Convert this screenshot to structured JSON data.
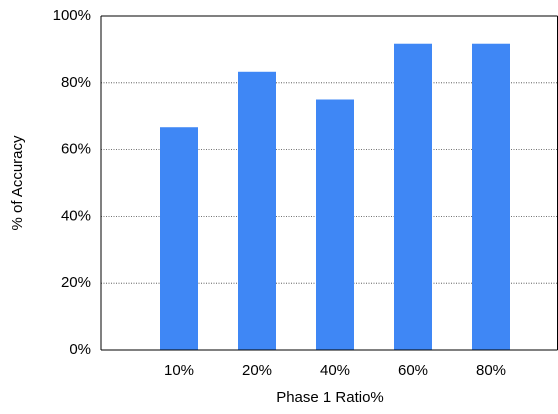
{
  "chart_data": {
    "type": "bar",
    "x_label": "Phase 1 Ratio%",
    "y_label": "% of Accuracy",
    "categories": [
      "10%",
      "20%",
      "40%",
      "60%",
      "80%"
    ],
    "values": [
      66.7,
      83.3,
      75,
      91.7,
      91.7
    ],
    "color": "#3f87f5",
    "ylim": [
      0,
      100
    ],
    "yticks": [
      {
        "value": 0,
        "label": "0%"
      },
      {
        "value": 20,
        "label": "20%"
      },
      {
        "value": 40,
        "label": "40%"
      },
      {
        "value": 60,
        "label": "60%"
      },
      {
        "value": 80,
        "label": "80%"
      },
      {
        "value": 100,
        "label": "100%"
      }
    ],
    "grid": true
  }
}
